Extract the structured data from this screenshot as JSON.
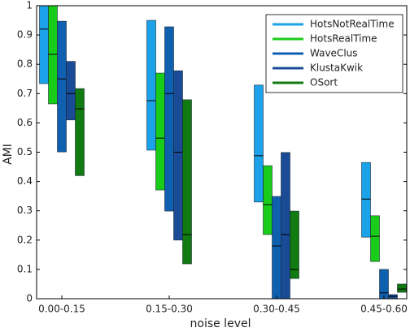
{
  "chart_data": {
    "type": "range",
    "xlabel": "noise level",
    "ylabel": "AMI",
    "categories": [
      "0.00-0.15",
      "0.15-0.30",
      "0.30-0.45",
      "0.45-0.60"
    ],
    "ylim": [
      0,
      1
    ],
    "yticks": [
      0,
      0.1,
      0.2,
      0.3,
      0.4,
      0.5,
      0.6,
      0.7,
      0.8,
      0.9,
      1
    ],
    "legend": "upper right",
    "series": [
      {
        "name": "HotsNotRealTime",
        "color": "#1ca2e8",
        "low": [
          0.734,
          0.507,
          0.33,
          0.21
        ],
        "median": [
          0.92,
          0.676,
          0.488,
          0.34
        ],
        "high": [
          1,
          0.95,
          0.729,
          0.465
        ]
      },
      {
        "name": "HotsRealTime",
        "color": "#19cc19",
        "low": [
          0.665,
          0.371,
          0.219,
          0.127
        ],
        "median": [
          0.834,
          0.548,
          0.321,
          0.213
        ],
        "high": [
          1,
          0.77,
          0.454,
          0.283
        ]
      },
      {
        "name": "WaveClus",
        "color": "#1060b0",
        "low": [
          0.501,
          0.299,
          0,
          0
        ],
        "median": [
          0.75,
          0.7,
          0.18,
          0.02
        ],
        "high": [
          0.947,
          0.928,
          0.349,
          0.1
        ]
      },
      {
        "name": "KlustaKwik",
        "color": "#1a4b96",
        "low": [
          0.61,
          0.2,
          0,
          0
        ],
        "median": [
          0.7,
          0.5,
          0.219,
          0.008
        ],
        "high": [
          0.81,
          0.778,
          0.499,
          0.014
        ]
      },
      {
        "name": "OSort",
        "color": "#117a11",
        "low": [
          0.42,
          0.119,
          0.069,
          0.022
        ],
        "median": [
          0.648,
          0.219,
          0.1,
          0.033
        ],
        "high": [
          0.717,
          0.679,
          0.299,
          0.05
        ]
      }
    ]
  }
}
